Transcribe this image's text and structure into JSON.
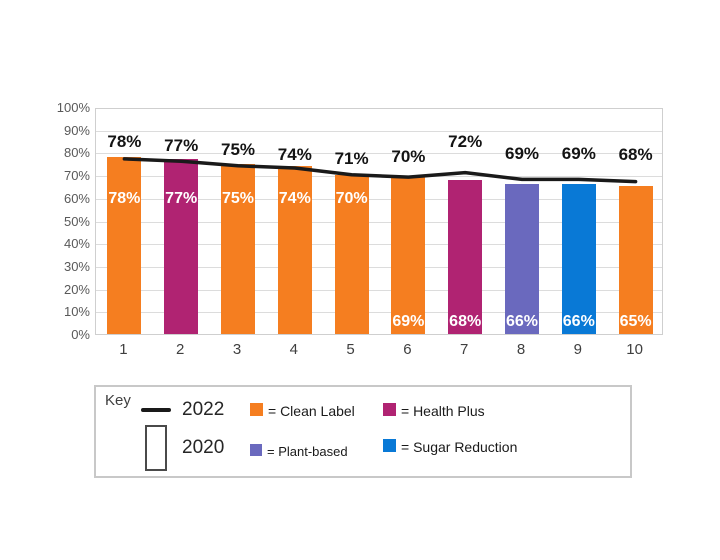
{
  "chart_data": {
    "type": "bar",
    "categories": [
      "1",
      "2",
      "3",
      "4",
      "5",
      "6",
      "7",
      "8",
      "9",
      "10"
    ],
    "series": [
      {
        "name": "2020",
        "type": "bar",
        "values": [
          78,
          77,
          75,
          74,
          70,
          69,
          68,
          66,
          66,
          65
        ],
        "labels": [
          "78%",
          "77%",
          "75%",
          "74%",
          "70%",
          "69%",
          "68%",
          "66%",
          "66%",
          "65%"
        ],
        "brands": [
          "Clean Label",
          "Health Plus",
          "Clean Label",
          "Clean Label",
          "Clean Label",
          "Clean Label",
          "Health Plus",
          "Plant-based",
          "Sugar Reduction",
          "Clean Label"
        ]
      },
      {
        "name": "2022",
        "type": "line",
        "values": [
          78,
          77,
          75,
          74,
          71,
          70,
          72,
          69,
          69,
          68
        ],
        "labels": [
          "78%",
          "77%",
          "75%",
          "74%",
          "71%",
          "70%",
          "72%",
          "69%",
          "69%",
          "68%"
        ],
        "color": "#1a1a1a"
      }
    ],
    "ylim": [
      0,
      100
    ],
    "y_ticks": [
      "100%",
      "90%",
      "80%",
      "70%",
      "60%",
      "50%",
      "40%",
      "30%",
      "20%",
      "10%",
      "0%"
    ],
    "grid": true,
    "legend_position": "bottom",
    "brand_colors": {
      "Clean Label": "#F57E20",
      "Health Plus": "#B02372",
      "Plant-based": "#6A69BE",
      "Sugar Reduction": "#0979D6"
    },
    "line_color": "#1a1a1a",
    "gridline_color": "#dcdcdc"
  },
  "key": {
    "title": "Key",
    "line_item": {
      "label": "2022"
    },
    "bar_item": {
      "label": "2020"
    },
    "items": [
      {
        "label": "= Clean Label",
        "color": "#F57E20"
      },
      {
        "label": "= Health Plus",
        "color": "#B02372"
      },
      {
        "label": "= Plant-based",
        "color": "#6A69BE"
      },
      {
        "label": "= Sugar Reduction",
        "color": "#0979D6"
      }
    ]
  }
}
